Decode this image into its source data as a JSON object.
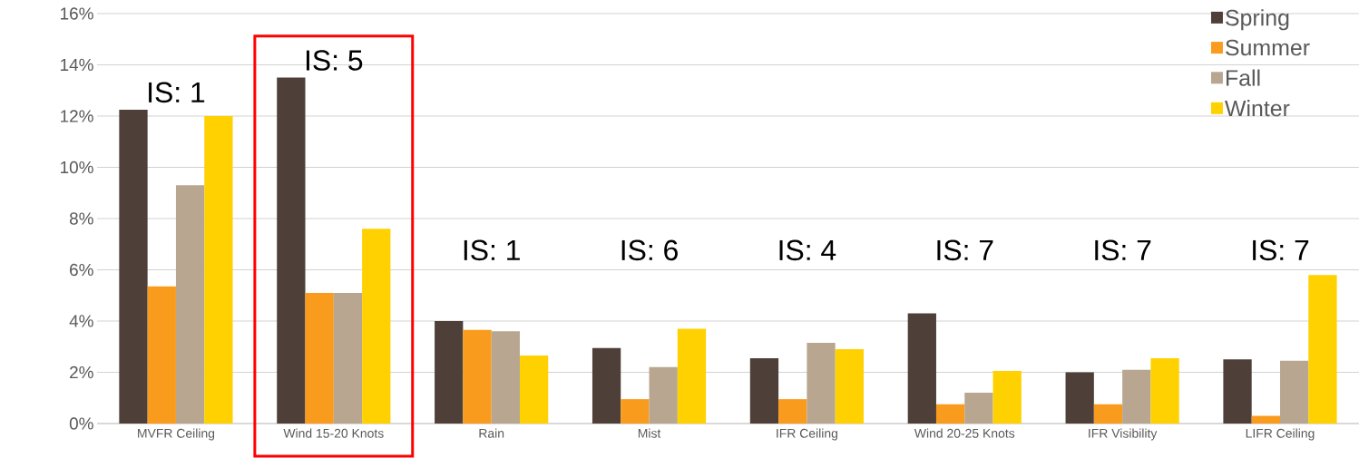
{
  "chart_data": {
    "type": "bar",
    "categories": [
      "MVFR Ceiling",
      "Wind 15-20 Knots",
      "Rain",
      "Mist",
      "IFR Ceiling",
      "Wind 20-25 Knots",
      "IFR Visibility",
      "LIFR Ceiling"
    ],
    "series": [
      {
        "name": "Spring",
        "color": "#4e4038",
        "values": [
          12.25,
          13.5,
          4.0,
          2.95,
          2.55,
          4.3,
          2.0,
          2.5
        ]
      },
      {
        "name": "Summer",
        "color": "#f99b1c",
        "values": [
          5.35,
          5.1,
          3.65,
          0.95,
          0.95,
          0.75,
          0.75,
          0.3
        ]
      },
      {
        "name": "Fall",
        "color": "#b8a690",
        "values": [
          9.3,
          5.1,
          3.6,
          2.2,
          3.15,
          1.2,
          2.1,
          2.45
        ]
      },
      {
        "name": "Winter",
        "color": "#ffd100",
        "values": [
          12.0,
          7.6,
          2.65,
          3.7,
          2.9,
          2.05,
          2.55,
          5.8
        ]
      }
    ],
    "ylim": [
      0,
      16
    ],
    "yticks": [
      {
        "value": 0,
        "label": "0%"
      },
      {
        "value": 2,
        "label": "2%"
      },
      {
        "value": 4,
        "label": "4%"
      },
      {
        "value": 6,
        "label": "6%"
      },
      {
        "value": 8,
        "label": "8%"
      },
      {
        "value": 10,
        "label": "10%"
      },
      {
        "value": 12,
        "label": "12%"
      },
      {
        "value": 14,
        "label": "14%"
      },
      {
        "value": 16,
        "label": "16%"
      }
    ],
    "grid": "y",
    "legend": "top right",
    "annotations": [
      "IS: 1",
      "IS: 5",
      "IS: 1",
      "IS: 6",
      "IS: 4",
      "IS: 7",
      "IS: 7",
      "IS: 7"
    ]
  }
}
